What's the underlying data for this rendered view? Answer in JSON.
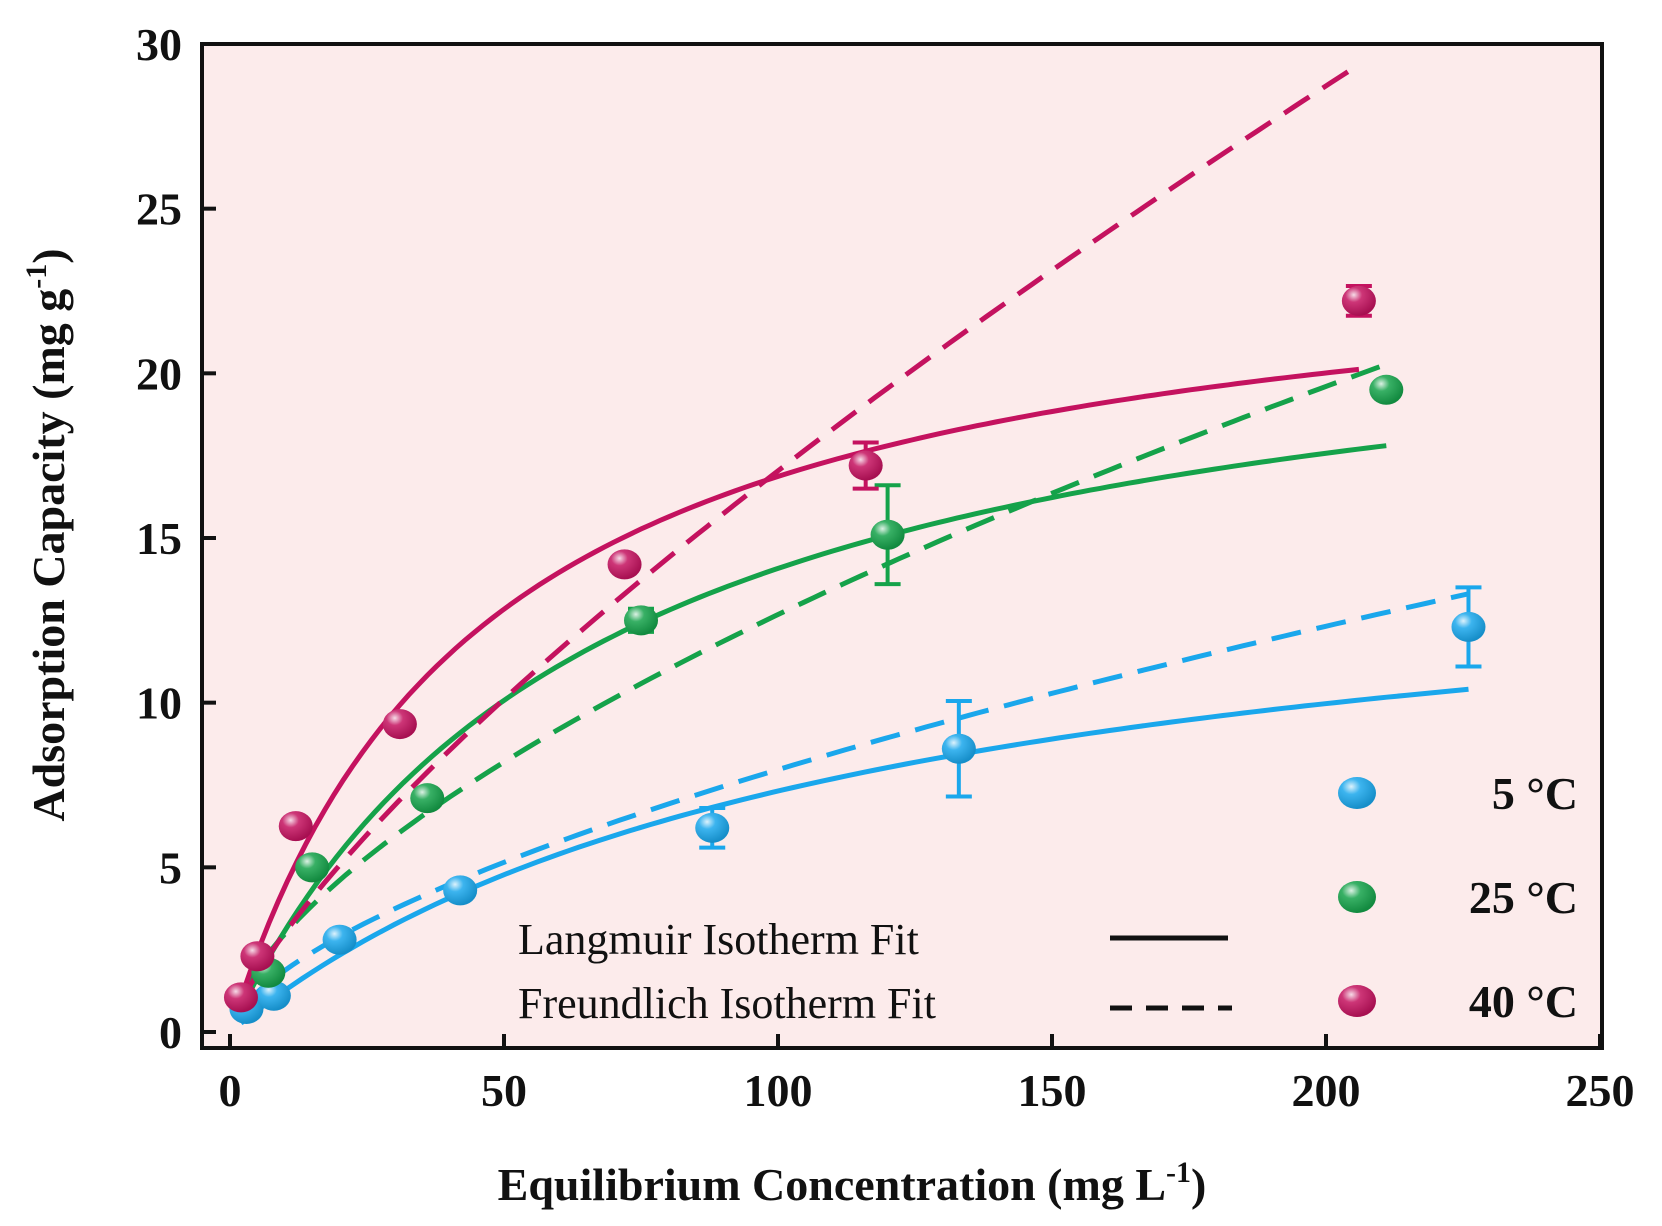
{
  "chart_data": {
    "type": "scatter",
    "xlabel": "Equilibrium Concentration (mg L",
    "xlabel_sup": "-1",
    "xlabel_tail": ")",
    "ylabel": "Adsorption Capacity (mg g",
    "ylabel_sup": "-1",
    "ylabel_tail": ")",
    "xlim": [
      0,
      250
    ],
    "ylim": [
      0,
      30
    ],
    "xticks": [
      0,
      50,
      100,
      150,
      200,
      250
    ],
    "xtick_labels": [
      "0",
      "50",
      "100",
      "150",
      "200",
      "250"
    ],
    "yticks": [
      0,
      5,
      10,
      15,
      20,
      25,
      30
    ],
    "ytick_labels": [
      "0",
      "5",
      "10",
      "15",
      "20",
      "25",
      "30"
    ],
    "plot_background": "#fcebeb",
    "fit_legend": [
      {
        "label": "Langmuir Isotherm Fit",
        "style": "solid"
      },
      {
        "label": "Freundlich Isotherm Fit",
        "style": "dashed"
      }
    ],
    "series": [
      {
        "name": "5 °C",
        "color": "#1aa7ec",
        "points": [
          {
            "x": 3,
            "y": 0.7,
            "err": 0
          },
          {
            "x": 8,
            "y": 1.1,
            "err": 0
          },
          {
            "x": 20,
            "y": 2.8,
            "err": 0
          },
          {
            "x": 42,
            "y": 4.3,
            "err": 0
          },
          {
            "x": 88,
            "y": 6.2,
            "err": 0.6
          },
          {
            "x": 133,
            "y": 8.6,
            "err": 1.45
          },
          {
            "x": 226,
            "y": 12.3,
            "err": 1.2
          }
        ],
        "langmuir": {
          "qmax": 15.65,
          "KL": 0.00878,
          "xrange": [
            2,
            226
          ]
        },
        "freundlich": {
          "KF": 0.44,
          "n": 1.59,
          "xrange": [
            2,
            226
          ]
        }
      },
      {
        "name": "25 °C",
        "color": "#15a24a",
        "points": [
          {
            "x": 7,
            "y": 1.8,
            "err": 0
          },
          {
            "x": 15,
            "y": 5.0,
            "err": 0
          },
          {
            "x": 36,
            "y": 7.1,
            "err": 0
          },
          {
            "x": 75,
            "y": 12.5,
            "err": 0.35
          },
          {
            "x": 120,
            "y": 15.1,
            "err": 1.5
          },
          {
            "x": 211,
            "y": 19.5,
            "err": 0
          }
        ],
        "langmuir": {
          "qmax": 23.38,
          "KL": 0.01513,
          "xrange": [
            2,
            211
          ]
        },
        "freundlich": {
          "KF": 0.7,
          "n": 1.59,
          "xrange": [
            2,
            211
          ]
        }
      },
      {
        "name": "40 °C",
        "color": "#c4125f",
        "points": [
          {
            "x": 2,
            "y": 1.05,
            "err": 0
          },
          {
            "x": 5,
            "y": 2.3,
            "err": 0
          },
          {
            "x": 12,
            "y": 6.25,
            "err": 0
          },
          {
            "x": 31,
            "y": 9.35,
            "err": 0
          },
          {
            "x": 72,
            "y": 14.2,
            "err": 0
          },
          {
            "x": 116,
            "y": 17.2,
            "err": 0.7
          },
          {
            "x": 206,
            "y": 22.2,
            "err": 0.45
          }
        ],
        "langmuir": {
          "qmax": 24.59,
          "KL": 0.02185,
          "xrange": [
            2,
            206
          ]
        },
        "freundlich": {
          "KF": 0.53,
          "n": 1.327,
          "xrange": [
            2,
            206
          ]
        }
      }
    ]
  }
}
